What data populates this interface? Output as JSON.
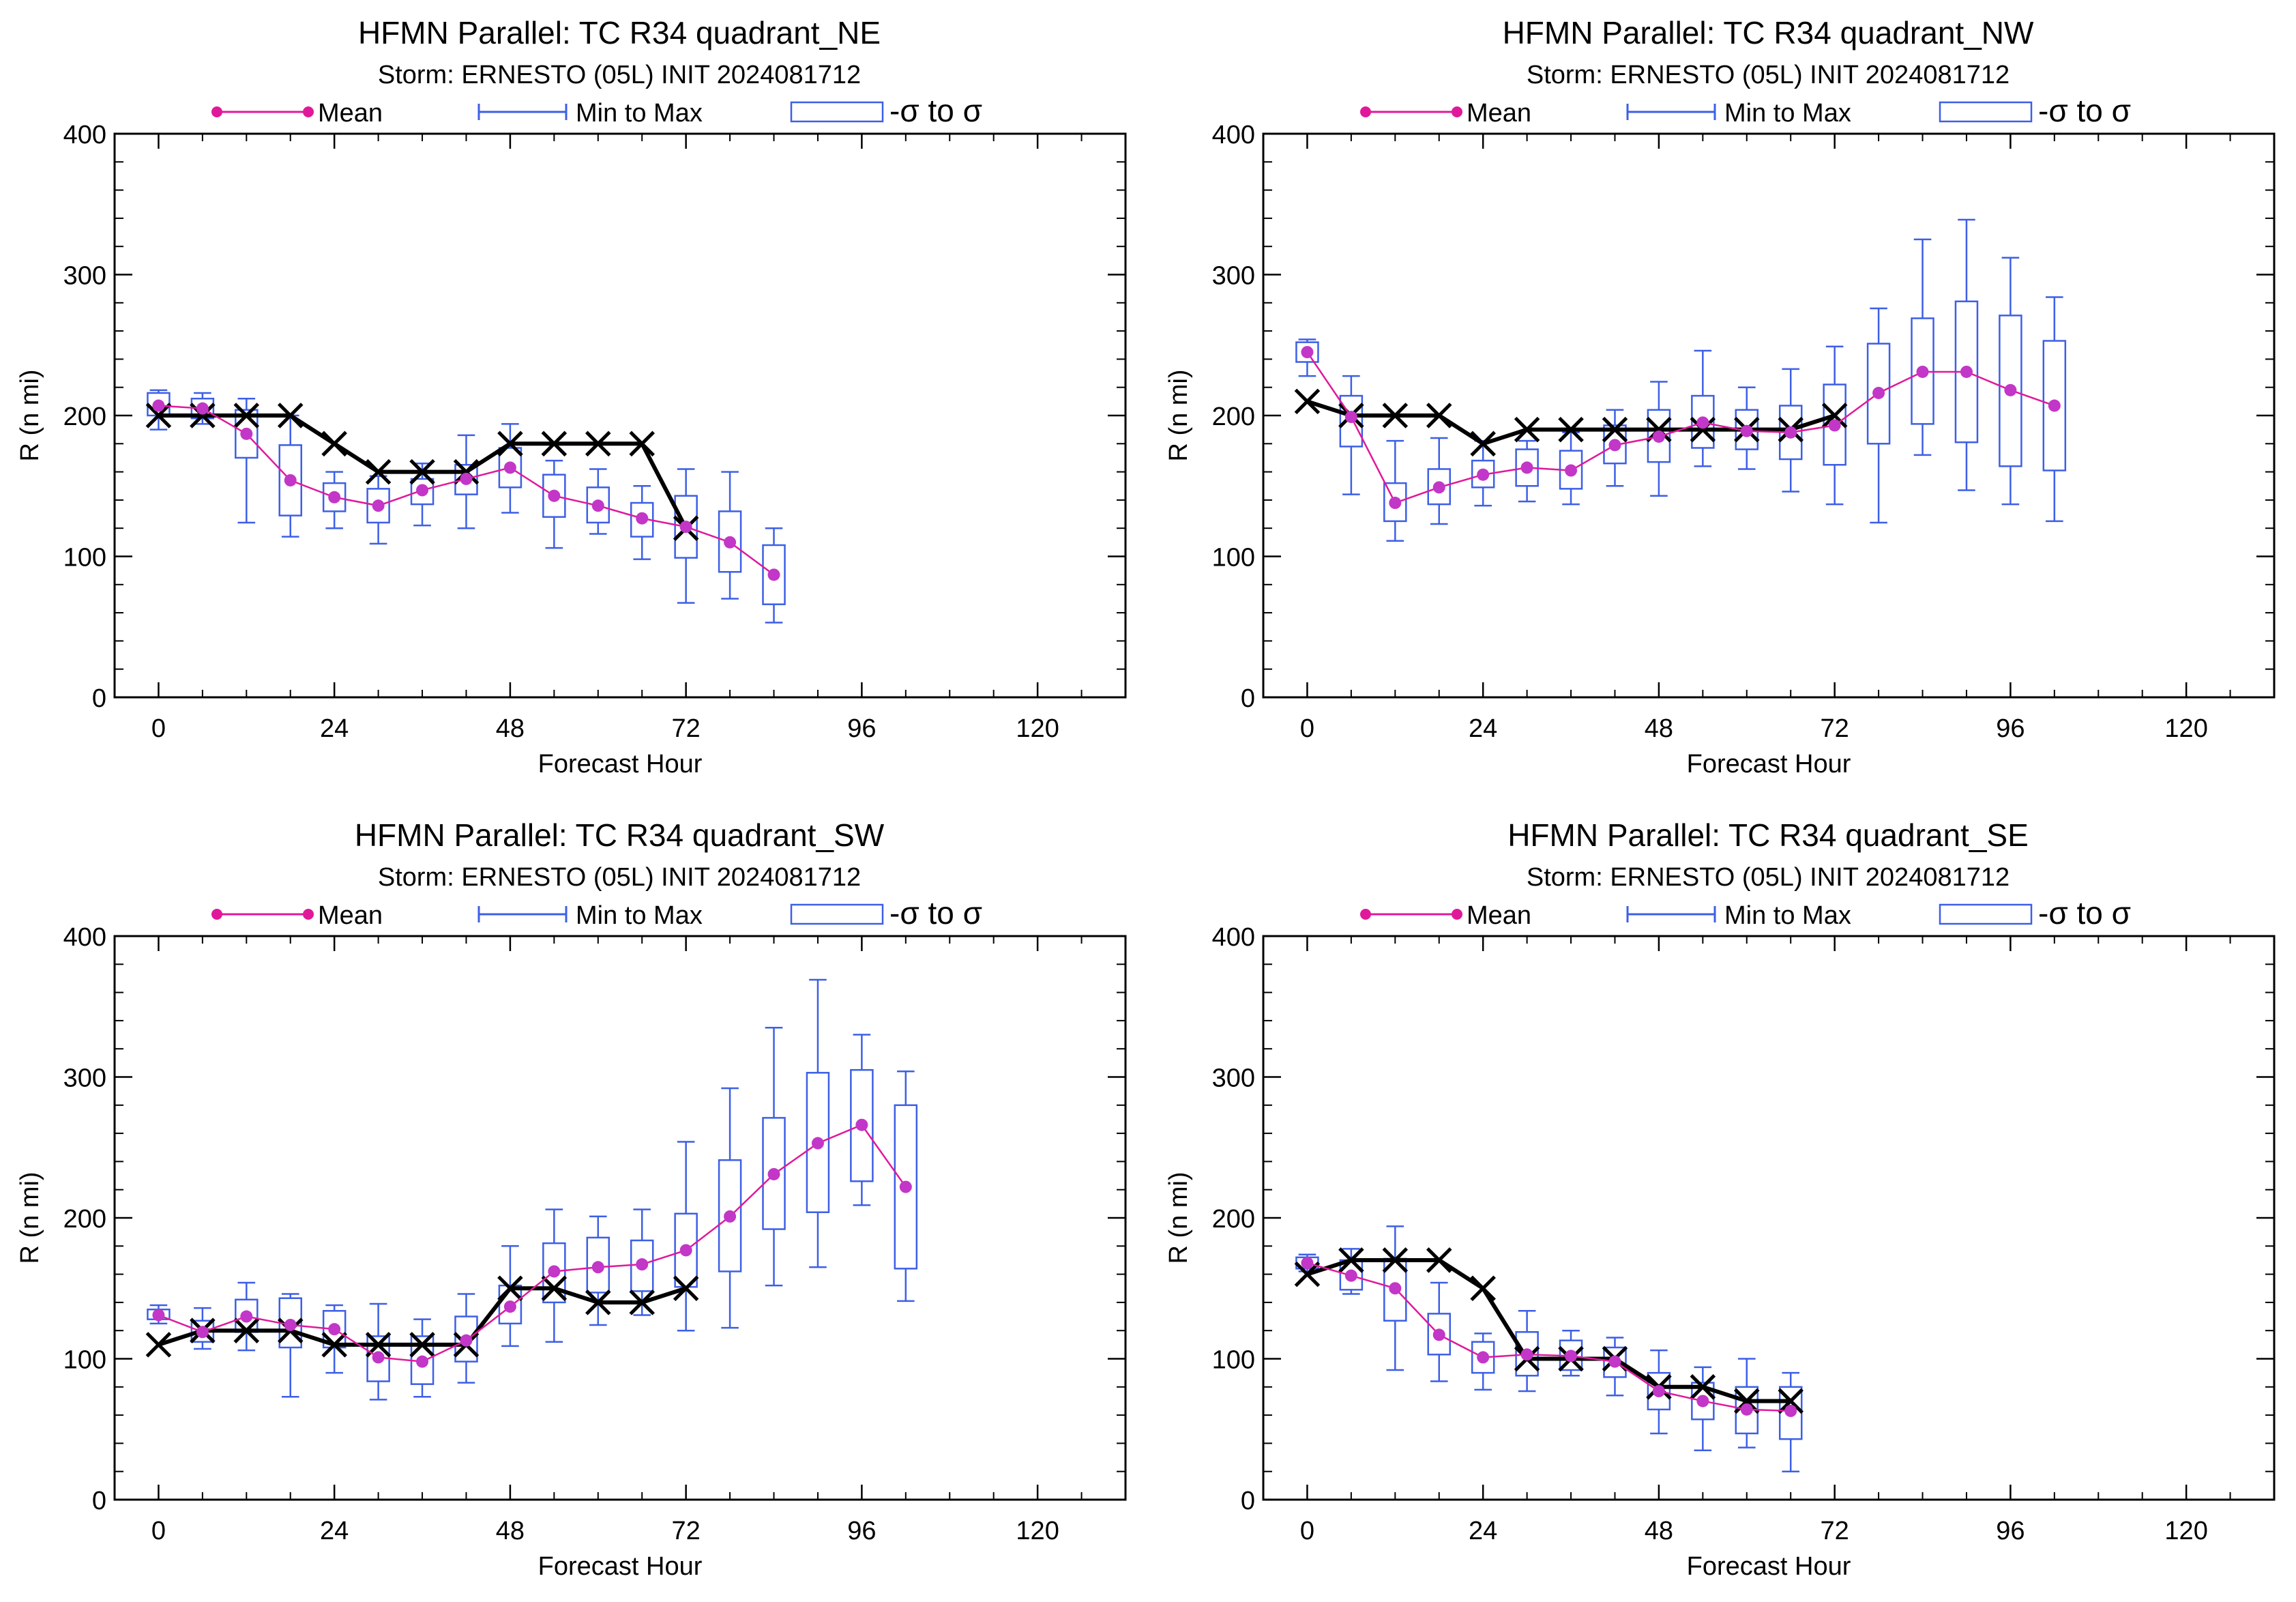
{
  "legend": {
    "mean": "Mean",
    "minmax": "Min to Max",
    "sigma": "-σ to σ"
  },
  "colors": {
    "mean": "#e0199a",
    "mean_point": "#c236c8",
    "box": "#3d5fe6",
    "best_track": "#000000",
    "axis": "#000000"
  },
  "chart_data": [
    {
      "type": "box",
      "title": "HFMN Parallel: TC  R34 quadrant_NE",
      "subtitle": "Storm: ERNESTO (05L) INIT 2024081712",
      "xlabel": "Forecast Hour",
      "ylabel": "R (n mi)",
      "xlim": [
        -6,
        132
      ],
      "ylim": [
        0,
        400
      ],
      "xticks": [
        0,
        24,
        48,
        72,
        96,
        120
      ],
      "yticks": [
        0,
        100,
        200,
        300,
        400
      ],
      "stats": [
        {
          "x": 0,
          "min": 190,
          "max": 218,
          "lo": 200,
          "hi": 216,
          "mean": 207
        },
        {
          "x": 6,
          "min": 194,
          "max": 216,
          "lo": 198,
          "hi": 212,
          "mean": 205
        },
        {
          "x": 12,
          "min": 124,
          "max": 212,
          "lo": 170,
          "hi": 204,
          "mean": 187
        },
        {
          "x": 18,
          "min": 114,
          "max": 200,
          "lo": 129,
          "hi": 179,
          "mean": 154
        },
        {
          "x": 24,
          "min": 120,
          "max": 160,
          "lo": 132,
          "hi": 152,
          "mean": 142
        },
        {
          "x": 30,
          "min": 109,
          "max": 157,
          "lo": 124,
          "hi": 148,
          "mean": 136
        },
        {
          "x": 36,
          "min": 122,
          "max": 166,
          "lo": 137,
          "hi": 155,
          "mean": 147
        },
        {
          "x": 42,
          "min": 120,
          "max": 186,
          "lo": 144,
          "hi": 165,
          "mean": 155
        },
        {
          "x": 48,
          "min": 131,
          "max": 194,
          "lo": 149,
          "hi": 177,
          "mean": 163
        },
        {
          "x": 54,
          "min": 106,
          "max": 168,
          "lo": 128,
          "hi": 158,
          "mean": 143
        },
        {
          "x": 60,
          "min": 116,
          "max": 162,
          "lo": 124,
          "hi": 149,
          "mean": 136
        },
        {
          "x": 66,
          "min": 98,
          "max": 150,
          "lo": 114,
          "hi": 138,
          "mean": 127
        },
        {
          "x": 72,
          "min": 67,
          "max": 162,
          "lo": 99,
          "hi": 143,
          "mean": 121
        },
        {
          "x": 78,
          "min": 70,
          "max": 160,
          "lo": 89,
          "hi": 132,
          "mean": 110
        },
        {
          "x": 84,
          "min": 53,
          "max": 120,
          "lo": 66,
          "hi": 108,
          "mean": 87
        }
      ],
      "best_track": [
        [
          0,
          200
        ],
        [
          6,
          200
        ],
        [
          12,
          200
        ],
        [
          18,
          200
        ],
        [
          24,
          180
        ],
        [
          30,
          160
        ],
        [
          36,
          160
        ],
        [
          42,
          160
        ],
        [
          48,
          180
        ],
        [
          54,
          180
        ],
        [
          60,
          180
        ],
        [
          66,
          180
        ],
        [
          72,
          120
        ]
      ]
    },
    {
      "type": "box",
      "title": "HFMN Parallel: TC  R34 quadrant_NW",
      "subtitle": "Storm: ERNESTO (05L) INIT 2024081712",
      "xlabel": "Forecast Hour",
      "ylabel": "R (n mi)",
      "xlim": [
        -6,
        132
      ],
      "ylim": [
        0,
        400
      ],
      "xticks": [
        0,
        24,
        48,
        72,
        96,
        120
      ],
      "yticks": [
        0,
        100,
        200,
        300,
        400
      ],
      "stats": [
        {
          "x": 0,
          "min": 228,
          "max": 254,
          "lo": 238,
          "hi": 252,
          "mean": 245
        },
        {
          "x": 6,
          "min": 144,
          "max": 228,
          "lo": 178,
          "hi": 214,
          "mean": 199
        },
        {
          "x": 12,
          "min": 111,
          "max": 182,
          "lo": 125,
          "hi": 152,
          "mean": 138
        },
        {
          "x": 18,
          "min": 123,
          "max": 184,
          "lo": 137,
          "hi": 162,
          "mean": 149
        },
        {
          "x": 24,
          "min": 136,
          "max": 182,
          "lo": 149,
          "hi": 168,
          "mean": 158
        },
        {
          "x": 30,
          "min": 139,
          "max": 182,
          "lo": 150,
          "hi": 176,
          "mean": 163
        },
        {
          "x": 36,
          "min": 137,
          "max": 188,
          "lo": 148,
          "hi": 175,
          "mean": 161
        },
        {
          "x": 42,
          "min": 150,
          "max": 204,
          "lo": 166,
          "hi": 193,
          "mean": 179
        },
        {
          "x": 48,
          "min": 143,
          "max": 224,
          "lo": 167,
          "hi": 204,
          "mean": 185
        },
        {
          "x": 54,
          "min": 164,
          "max": 246,
          "lo": 177,
          "hi": 214,
          "mean": 195
        },
        {
          "x": 60,
          "min": 162,
          "max": 220,
          "lo": 176,
          "hi": 204,
          "mean": 189
        },
        {
          "x": 66,
          "min": 146,
          "max": 233,
          "lo": 169,
          "hi": 207,
          "mean": 188
        },
        {
          "x": 72,
          "min": 137,
          "max": 249,
          "lo": 165,
          "hi": 222,
          "mean": 193
        },
        {
          "x": 78,
          "min": 124,
          "max": 276,
          "lo": 180,
          "hi": 251,
          "mean": 216
        },
        {
          "x": 84,
          "min": 172,
          "max": 325,
          "lo": 194,
          "hi": 269,
          "mean": 231
        },
        {
          "x": 90,
          "min": 147,
          "max": 339,
          "lo": 181,
          "hi": 281,
          "mean": 231
        },
        {
          "x": 96,
          "min": 137,
          "max": 312,
          "lo": 164,
          "hi": 271,
          "mean": 218
        },
        {
          "x": 102,
          "min": 125,
          "max": 284,
          "lo": 161,
          "hi": 253,
          "mean": 207
        }
      ],
      "best_track": [
        [
          0,
          210
        ],
        [
          6,
          200
        ],
        [
          12,
          200
        ],
        [
          18,
          200
        ],
        [
          24,
          180
        ],
        [
          30,
          190
        ],
        [
          36,
          190
        ],
        [
          42,
          190
        ],
        [
          48,
          190
        ],
        [
          54,
          190
        ],
        [
          60,
          190
        ],
        [
          66,
          190
        ],
        [
          72,
          200
        ]
      ]
    },
    {
      "type": "box",
      "title": "HFMN Parallel: TC  R34 quadrant_SW",
      "subtitle": "Storm: ERNESTO (05L) INIT 2024081712",
      "xlabel": "Forecast Hour",
      "ylabel": "R (n mi)",
      "xlim": [
        -6,
        132
      ],
      "ylim": [
        0,
        400
      ],
      "xticks": [
        0,
        24,
        48,
        72,
        96,
        120
      ],
      "yticks": [
        0,
        100,
        200,
        300,
        400
      ],
      "stats": [
        {
          "x": 0,
          "min": 125,
          "max": 138,
          "lo": 128,
          "hi": 135,
          "mean": 131
        },
        {
          "x": 6,
          "min": 107,
          "max": 136,
          "lo": 112,
          "hi": 127,
          "mean": 119
        },
        {
          "x": 12,
          "min": 106,
          "max": 154,
          "lo": 119,
          "hi": 142,
          "mean": 130
        },
        {
          "x": 18,
          "min": 73,
          "max": 146,
          "lo": 108,
          "hi": 143,
          "mean": 124
        },
        {
          "x": 24,
          "min": 90,
          "max": 138,
          "lo": 108,
          "hi": 134,
          "mean": 121
        },
        {
          "x": 30,
          "min": 71,
          "max": 139,
          "lo": 84,
          "hi": 116,
          "mean": 101
        },
        {
          "x": 36,
          "min": 73,
          "max": 128,
          "lo": 82,
          "hi": 116,
          "mean": 98
        },
        {
          "x": 42,
          "min": 83,
          "max": 146,
          "lo": 98,
          "hi": 130,
          "mean": 113
        },
        {
          "x": 48,
          "min": 109,
          "max": 180,
          "lo": 125,
          "hi": 152,
          "mean": 137
        },
        {
          "x": 54,
          "min": 112,
          "max": 206,
          "lo": 140,
          "hi": 182,
          "mean": 162
        },
        {
          "x": 60,
          "min": 124,
          "max": 201,
          "lo": 147,
          "hi": 186,
          "mean": 165
        },
        {
          "x": 66,
          "min": 131,
          "max": 206,
          "lo": 148,
          "hi": 184,
          "mean": 167
        },
        {
          "x": 72,
          "min": 120,
          "max": 254,
          "lo": 151,
          "hi": 203,
          "mean": 177
        },
        {
          "x": 78,
          "min": 122,
          "max": 292,
          "lo": 162,
          "hi": 241,
          "mean": 201
        },
        {
          "x": 84,
          "min": 152,
          "max": 335,
          "lo": 192,
          "hi": 271,
          "mean": 231
        },
        {
          "x": 90,
          "min": 165,
          "max": 369,
          "lo": 204,
          "hi": 303,
          "mean": 253
        },
        {
          "x": 96,
          "min": 209,
          "max": 330,
          "lo": 226,
          "hi": 305,
          "mean": 266
        },
        {
          "x": 102,
          "min": 141,
          "max": 304,
          "lo": 164,
          "hi": 280,
          "mean": 222
        }
      ],
      "best_track": [
        [
          0,
          110
        ],
        [
          6,
          120
        ],
        [
          12,
          120
        ],
        [
          18,
          120
        ],
        [
          24,
          110
        ],
        [
          30,
          110
        ],
        [
          36,
          110
        ],
        [
          42,
          110
        ],
        [
          48,
          150
        ],
        [
          54,
          150
        ],
        [
          60,
          140
        ],
        [
          66,
          140
        ],
        [
          72,
          150
        ]
      ]
    },
    {
      "type": "box",
      "title": "HFMN Parallel: TC  R34 quadrant_SE",
      "subtitle": "Storm: ERNESTO (05L) INIT 2024081712",
      "xlabel": "Forecast Hour",
      "ylabel": "R (n mi)",
      "xlim": [
        -6,
        132
      ],
      "ylim": [
        0,
        400
      ],
      "xticks": [
        0,
        24,
        48,
        72,
        96,
        120
      ],
      "yticks": [
        0,
        100,
        200,
        300,
        400
      ],
      "stats": [
        {
          "x": 0,
          "min": 162,
          "max": 174,
          "lo": 164,
          "hi": 172,
          "mean": 168
        },
        {
          "x": 6,
          "min": 146,
          "max": 178,
          "lo": 149,
          "hi": 170,
          "mean": 159
        },
        {
          "x": 12,
          "min": 92,
          "max": 194,
          "lo": 127,
          "hi": 171,
          "mean": 150
        },
        {
          "x": 18,
          "min": 84,
          "max": 154,
          "lo": 103,
          "hi": 132,
          "mean": 117
        },
        {
          "x": 24,
          "min": 78,
          "max": 118,
          "lo": 90,
          "hi": 112,
          "mean": 101
        },
        {
          "x": 30,
          "min": 77,
          "max": 134,
          "lo": 88,
          "hi": 119,
          "mean": 103
        },
        {
          "x": 36,
          "min": 88,
          "max": 120,
          "lo": 92,
          "hi": 113,
          "mean": 102
        },
        {
          "x": 42,
          "min": 74,
          "max": 115,
          "lo": 87,
          "hi": 108,
          "mean": 98
        },
        {
          "x": 48,
          "min": 47,
          "max": 106,
          "lo": 64,
          "hi": 90,
          "mean": 77
        },
        {
          "x": 54,
          "min": 35,
          "max": 94,
          "lo": 57,
          "hi": 83,
          "mean": 70
        },
        {
          "x": 60,
          "min": 37,
          "max": 100,
          "lo": 47,
          "hi": 80,
          "mean": 64
        },
        {
          "x": 66,
          "min": 20,
          "max": 90,
          "lo": 43,
          "hi": 80,
          "mean": 63
        }
      ],
      "best_track": [
        [
          0,
          160
        ],
        [
          6,
          170
        ],
        [
          12,
          170
        ],
        [
          18,
          170
        ],
        [
          24,
          150
        ],
        [
          30,
          100
        ],
        [
          36,
          100
        ],
        [
          42,
          100
        ],
        [
          48,
          80
        ],
        [
          54,
          80
        ],
        [
          60,
          70
        ],
        [
          66,
          70
        ]
      ]
    }
  ]
}
